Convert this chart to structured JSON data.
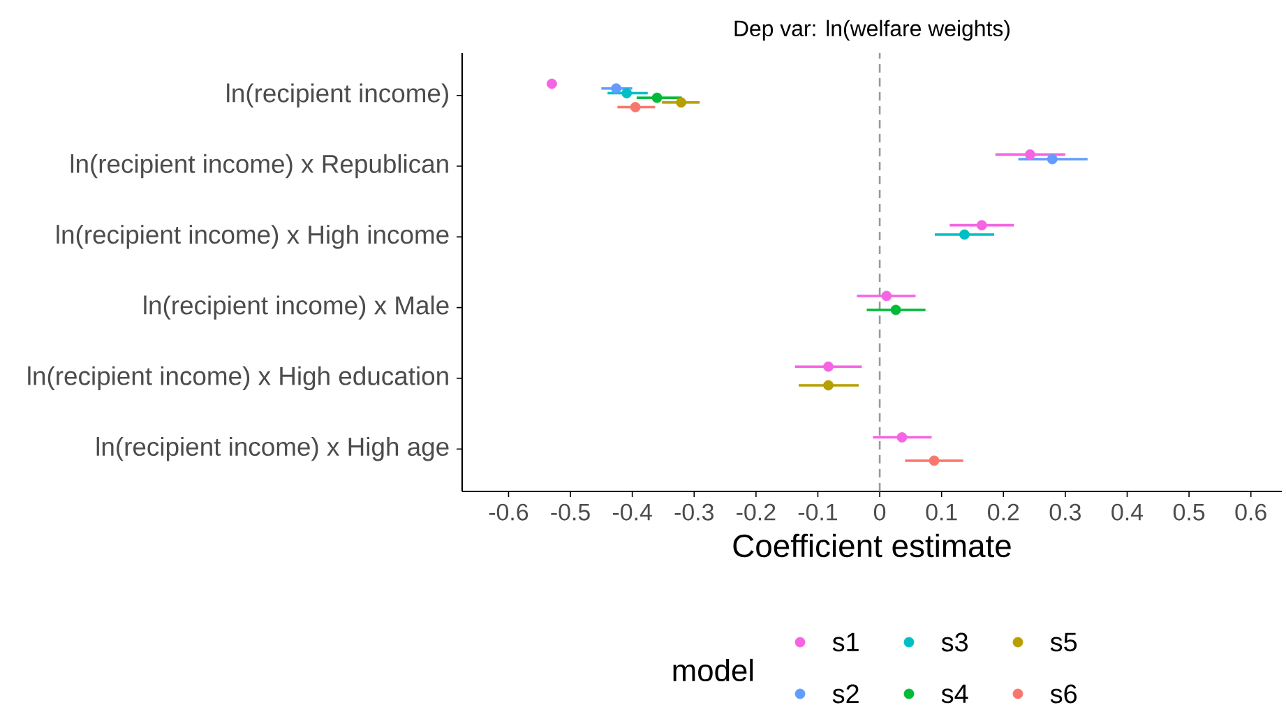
{
  "chart_data": {
    "type": "scatter",
    "title": "Dep var: ln(welfare weights)",
    "xlabel": "Coefficient estimate",
    "legend_title": "model",
    "categories": [
      "ln(recipient income)",
      "ln(recipient income) x Republican",
      "ln(recipient income) x High income",
      "ln(recipient income) x Male",
      "ln(recipient income) x High education",
      "ln(recipient income) x High age"
    ],
    "series": [
      {
        "name": "s1",
        "color": "#f564e3",
        "values": [
          -0.53,
          0.243,
          0.165,
          0.011,
          -0.083,
          0.036
        ],
        "errors": [
          null,
          [
            0.187,
            0.3
          ],
          [
            0.113,
            0.217
          ],
          [
            -0.037,
            0.058
          ],
          [
            -0.137,
            -0.029
          ],
          [
            -0.011,
            0.084
          ]
        ]
      },
      {
        "name": "s2",
        "color": "#619cff",
        "values": [
          -0.426,
          0.279,
          null,
          null,
          null,
          null
        ],
        "errors": [
          [
            -0.45,
            -0.4
          ],
          [
            0.224,
            0.336
          ],
          null,
          null,
          null,
          null
        ]
      },
      {
        "name": "s3",
        "color": "#00bfc4",
        "values": [
          -0.409,
          null,
          0.137,
          null,
          null,
          null
        ],
        "errors": [
          [
            -0.44,
            -0.375
          ],
          null,
          [
            0.089,
            0.185
          ],
          null,
          null,
          null
        ]
      },
      {
        "name": "s4",
        "color": "#00ba38",
        "values": [
          -0.36,
          null,
          null,
          0.026,
          null,
          null
        ],
        "errors": [
          [
            -0.393,
            -0.32
          ],
          null,
          null,
          [
            -0.021,
            0.074
          ],
          null,
          null
        ]
      },
      {
        "name": "s5",
        "color": "#b79f00",
        "values": [
          -0.321,
          null,
          null,
          null,
          -0.083,
          null
        ],
        "errors": [
          [
            -0.352,
            -0.291
          ],
          null,
          null,
          null,
          [
            -0.131,
            -0.034
          ],
          null
        ]
      },
      {
        "name": "s6",
        "color": "#f8766d",
        "values": [
          -0.395,
          null,
          null,
          null,
          null,
          0.088
        ],
        "errors": [
          [
            -0.424,
            -0.363
          ],
          null,
          null,
          null,
          null,
          [
            0.041,
            0.135
          ]
        ]
      }
    ],
    "orientation": "horizontal",
    "xlim": [
      -0.675,
      0.65
    ],
    "xticks": [
      -0.6,
      -0.5,
      -0.4,
      -0.3,
      -0.2,
      -0.1,
      0,
      0.1,
      0.2,
      0.3,
      0.4,
      0.5,
      0.6
    ],
    "ref_lines": [
      {
        "axis": "x",
        "value": 0,
        "color": "#999999",
        "line_style": "dashed"
      }
    ],
    "grid": false,
    "legend": "bottom",
    "marker": "circle"
  }
}
